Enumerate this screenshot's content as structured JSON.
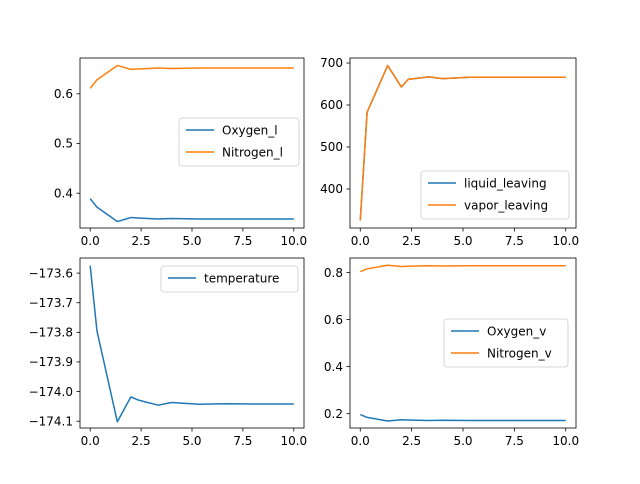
{
  "chart_data": [
    {
      "type": "line",
      "x": [
        0,
        0.333,
        1.333,
        2,
        2.333,
        3.333,
        4,
        5.333,
        6.667,
        8,
        10
      ],
      "series": [
        {
          "name": "Oxygen_l",
          "values": [
            0.389,
            0.372,
            0.343,
            0.351,
            0.35,
            0.348,
            0.349,
            0.348,
            0.348,
            0.348,
            0.348
          ]
        },
        {
          "name": "Nitrogen_l",
          "values": [
            0.611,
            0.628,
            0.657,
            0.649,
            0.65,
            0.652,
            0.651,
            0.652,
            0.652,
            0.652,
            0.652
          ]
        }
      ],
      "xlim": [
        -0.5,
        10.5
      ],
      "ylim": [
        0.33,
        0.672
      ],
      "xticks": [
        0,
        2.5,
        5,
        7.5,
        10
      ],
      "xtick_labels": [
        "0.0",
        "2.5",
        "5.0",
        "7.5",
        "10.0"
      ],
      "yticks": [
        0.4,
        0.5,
        0.6
      ],
      "ytick_labels": [
        "0.4",
        "0.5",
        "0.6"
      ],
      "legend": "center-right"
    },
    {
      "type": "line",
      "x": [
        0,
        0.333,
        1.333,
        2,
        2.333,
        3.333,
        4,
        5.333,
        6.667,
        8,
        10
      ],
      "series": [
        {
          "name": "liquid_leaving",
          "values": [
            325,
            583,
            694,
            643,
            661,
            667,
            663,
            666,
            666,
            666,
            666
          ]
        },
        {
          "name": "vapor_leaving",
          "values": [
            325,
            583,
            694,
            643,
            661,
            667,
            663,
            666,
            666,
            666,
            666
          ]
        }
      ],
      "xlim": [
        -0.5,
        10.5
      ],
      "ylim": [
        307,
        712
      ],
      "xticks": [
        0,
        2.5,
        5,
        7.5,
        10
      ],
      "xtick_labels": [
        "0.0",
        "2.5",
        "5.0",
        "7.5",
        "10.0"
      ],
      "yticks": [
        400,
        500,
        600,
        700
      ],
      "ytick_labels": [
        "400",
        "500",
        "600",
        "700"
      ],
      "legend": "lower-right"
    },
    {
      "type": "line",
      "x": [
        0,
        0.333,
        1.333,
        2,
        2.333,
        3.333,
        4,
        5.333,
        6.667,
        8,
        10
      ],
      "series": [
        {
          "name": "temperature",
          "values": [
            -173.575,
            -173.795,
            -174.102,
            -174.018,
            -174.028,
            -174.046,
            -174.037,
            -174.043,
            -174.041,
            -174.042,
            -174.042
          ]
        }
      ],
      "xlim": [
        -0.5,
        10.5
      ],
      "ylim": [
        -174.123,
        -173.549
      ],
      "xticks": [
        0,
        2.5,
        5,
        7.5,
        10
      ],
      "xtick_labels": [
        "0.0",
        "2.5",
        "5.0",
        "7.5",
        "10.0"
      ],
      "yticks": [
        -173.6,
        -173.7,
        -173.8,
        -173.9,
        -174.0,
        -174.1
      ],
      "ytick_labels": [
        "−173.6",
        "−173.7",
        "−173.8",
        "−173.9",
        "−174.0",
        "−174.1"
      ],
      "legend": "upper-right"
    },
    {
      "type": "line",
      "x": [
        0,
        0.333,
        1.333,
        2,
        2.333,
        3.333,
        4,
        5.333,
        6.667,
        8,
        10
      ],
      "series": [
        {
          "name": "Oxygen_v",
          "values": [
            0.196,
            0.184,
            0.169,
            0.174,
            0.173,
            0.171,
            0.172,
            0.171,
            0.171,
            0.171,
            0.171
          ]
        },
        {
          "name": "Nitrogen_v",
          "values": [
            0.804,
            0.816,
            0.831,
            0.826,
            0.827,
            0.829,
            0.828,
            0.829,
            0.829,
            0.829,
            0.829
          ]
        }
      ],
      "xlim": [
        -0.5,
        10.5
      ],
      "ylim": [
        0.139,
        0.862
      ],
      "xticks": [
        0,
        2.5,
        5,
        7.5,
        10
      ],
      "xtick_labels": [
        "0.0",
        "2.5",
        "5.0",
        "7.5",
        "10.0"
      ],
      "yticks": [
        0.2,
        0.4,
        0.6,
        0.8
      ],
      "ytick_labels": [
        "0.2",
        "0.4",
        "0.6",
        "0.8"
      ],
      "legend": "center-right"
    }
  ],
  "colors": {
    "series_1": "#1f77b4",
    "series_2": "#ff7f0e",
    "axes": "#000000",
    "legend_border": "#cccccc"
  }
}
